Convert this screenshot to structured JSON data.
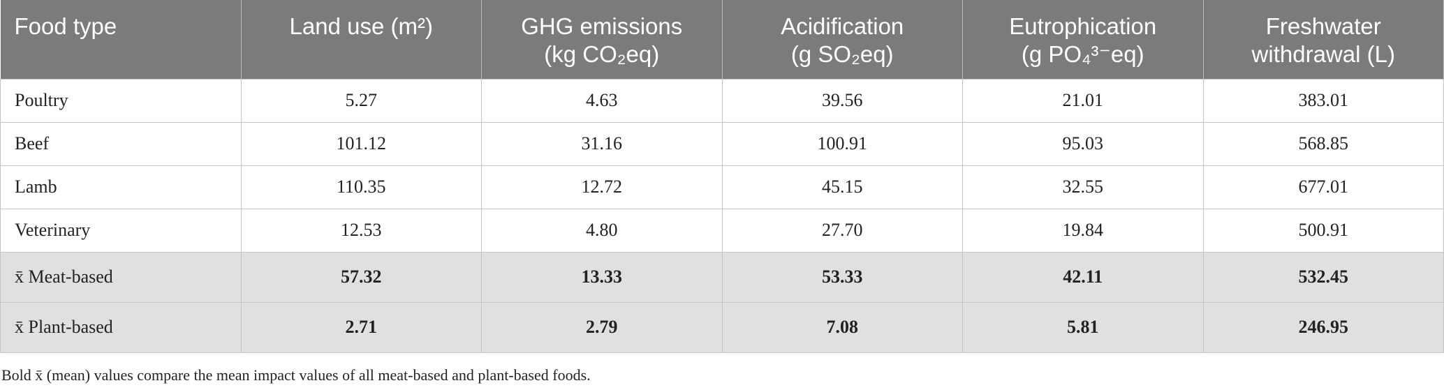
{
  "table": {
    "header": [
      [
        "Food type"
      ],
      [
        "Land use (m²)"
      ],
      [
        "GHG emissions",
        "(kg CO₂eq)"
      ],
      [
        "Acidification",
        "(g SO₂eq)"
      ],
      [
        "Eutrophication",
        "(g PO₄³⁻eq)"
      ],
      [
        "Freshwater",
        "withdrawal (L)"
      ]
    ],
    "rows": [
      [
        "Poultry",
        "5.27",
        "4.63",
        "39.56",
        "21.01",
        "383.01"
      ],
      [
        "Beef",
        "101.12",
        "31.16",
        "100.91",
        "95.03",
        "568.85"
      ],
      [
        "Lamb",
        "110.35",
        "12.72",
        "45.15",
        "32.55",
        "677.01"
      ],
      [
        "Veterinary",
        "12.53",
        "4.80",
        "27.70",
        "19.84",
        "500.91"
      ]
    ],
    "summary_rows": [
      [
        "x̄ Meat-based",
        "57.32",
        "13.33",
        "53.33",
        "42.11",
        "532.45"
      ],
      [
        "x̄ Plant-based",
        "2.71",
        "2.79",
        "7.08",
        "5.81",
        "246.95"
      ]
    ]
  },
  "footnote": "Bold x̄ (mean) values compare the mean impact values of all meat-based and plant-based foods."
}
